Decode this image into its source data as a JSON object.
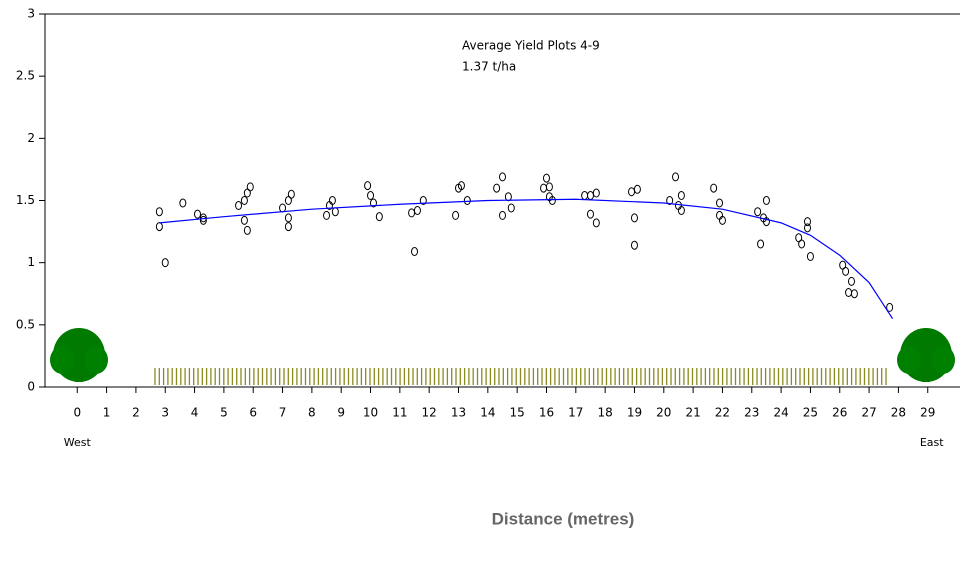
{
  "chart_data": {
    "type": "scatter",
    "annotations": [
      "Average Yield Plots 4-9",
      "1.37 t/ha"
    ],
    "west_label": "West",
    "east_label": "East",
    "x_label": "Distance (metres)",
    "xlim": [
      -1.1,
      30.1
    ],
    "ylim": [
      0,
      3
    ],
    "xticks": [
      0,
      1,
      2,
      3,
      4,
      5,
      6,
      7,
      8,
      9,
      10,
      11,
      12,
      13,
      14,
      15,
      16,
      17,
      18,
      19,
      20,
      21,
      22,
      23,
      24,
      25,
      26,
      27,
      28,
      29
    ],
    "yticks": [
      0,
      0.5,
      1,
      1.5,
      2,
      2.5,
      3
    ],
    "series": [
      {
        "color": "#000000",
        "marker": "circle",
        "x": [
          2.8,
          2.8,
          3.0,
          3.6,
          4.1,
          4.3,
          4.3,
          5.5,
          5.7,
          5.8,
          5.9,
          5.7,
          5.8,
          7.0,
          7.2,
          7.3,
          7.2,
          7.2,
          8.5,
          8.6,
          8.7,
          8.8,
          9.9,
          10.0,
          10.1,
          10.3,
          11.4,
          11.6,
          11.5,
          11.8,
          12.9,
          13.0,
          13.1,
          13.3,
          14.3,
          14.5,
          14.7,
          14.5,
          14.8,
          15.9,
          16.0,
          16.1,
          16.1,
          16.2,
          17.3,
          17.5,
          17.7,
          17.5,
          17.7,
          18.9,
          19.1,
          19.0,
          19.0,
          20.2,
          20.4,
          20.5,
          20.6,
          20.6,
          21.7,
          21.9,
          21.9,
          22.0,
          23.2,
          23.4,
          23.5,
          23.5,
          23.3,
          24.6,
          24.7,
          24.9,
          24.9,
          25.0,
          26.1,
          26.2,
          26.4,
          26.3,
          26.5,
          27.7
        ],
        "values": [
          1.41,
          1.29,
          1.0,
          1.48,
          1.39,
          1.36,
          1.34,
          1.46,
          1.5,
          1.56,
          1.61,
          1.34,
          1.26,
          1.44,
          1.5,
          1.55,
          1.36,
          1.29,
          1.38,
          1.46,
          1.5,
          1.41,
          1.62,
          1.54,
          1.48,
          1.37,
          1.4,
          1.42,
          1.09,
          1.5,
          1.38,
          1.6,
          1.62,
          1.5,
          1.6,
          1.69,
          1.53,
          1.38,
          1.44,
          1.6,
          1.68,
          1.61,
          1.53,
          1.5,
          1.54,
          1.54,
          1.56,
          1.39,
          1.32,
          1.57,
          1.59,
          1.36,
          1.14,
          1.5,
          1.69,
          1.46,
          1.54,
          1.42,
          1.6,
          1.48,
          1.38,
          1.34,
          1.41,
          1.36,
          1.5,
          1.33,
          1.15,
          1.2,
          1.15,
          1.33,
          1.28,
          1.05,
          0.98,
          0.93,
          0.85,
          0.76,
          0.75,
          0.64
        ]
      },
      {
        "color": "#0000ff",
        "marker": "line",
        "x": [
          2.8,
          5,
          8,
          11,
          14,
          17,
          20,
          22,
          24,
          25,
          26,
          27,
          27.8
        ],
        "values": [
          1.32,
          1.37,
          1.43,
          1.47,
          1.5,
          1.51,
          1.48,
          1.43,
          1.32,
          1.22,
          1.06,
          0.84,
          0.55
        ]
      }
    ]
  }
}
